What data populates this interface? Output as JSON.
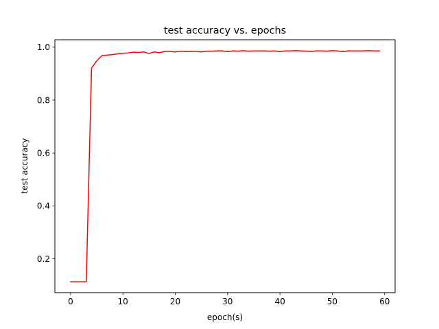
{
  "chart_data": {
    "type": "line",
    "title": "test accuracy vs. epochs",
    "xlabel": "epoch(s)",
    "ylabel": "test accuracy",
    "xlim": [
      -3,
      62
    ],
    "ylim": [
      0.072,
      1.028
    ],
    "xticks": [
      0,
      10,
      20,
      30,
      40,
      50,
      60
    ],
    "yticks": [
      0.2,
      0.4,
      0.6,
      0.8,
      1.0
    ],
    "ytick_labels": [
      "0.2",
      "0.4",
      "0.6",
      "0.8",
      "1.0"
    ],
    "grid": false,
    "series": [
      {
        "color": "#ff0000",
        "x": [
          0,
          1,
          2,
          3,
          4,
          5,
          6,
          7,
          8,
          9,
          10,
          11,
          12,
          13,
          14,
          15,
          16,
          17,
          18,
          19,
          20,
          21,
          22,
          23,
          24,
          25,
          26,
          27,
          28,
          29,
          30,
          31,
          32,
          33,
          34,
          35,
          36,
          37,
          38,
          39,
          40,
          41,
          42,
          43,
          44,
          45,
          46,
          47,
          48,
          49,
          50,
          51,
          52,
          53,
          54,
          55,
          56,
          57,
          58,
          59
        ],
        "values": [
          0.113,
          0.113,
          0.113,
          0.113,
          0.921,
          0.948,
          0.968,
          0.97,
          0.972,
          0.975,
          0.977,
          0.978,
          0.981,
          0.98,
          0.982,
          0.976,
          0.982,
          0.979,
          0.984,
          0.984,
          0.982,
          0.985,
          0.983,
          0.984,
          0.984,
          0.982,
          0.985,
          0.985,
          0.986,
          0.986,
          0.983,
          0.986,
          0.985,
          0.987,
          0.985,
          0.986,
          0.986,
          0.986,
          0.985,
          0.986,
          0.983,
          0.986,
          0.986,
          0.987,
          0.986,
          0.985,
          0.984,
          0.986,
          0.986,
          0.985,
          0.987,
          0.986,
          0.983,
          0.986,
          0.986,
          0.986,
          0.986,
          0.987,
          0.986,
          0.986
        ]
      }
    ]
  }
}
